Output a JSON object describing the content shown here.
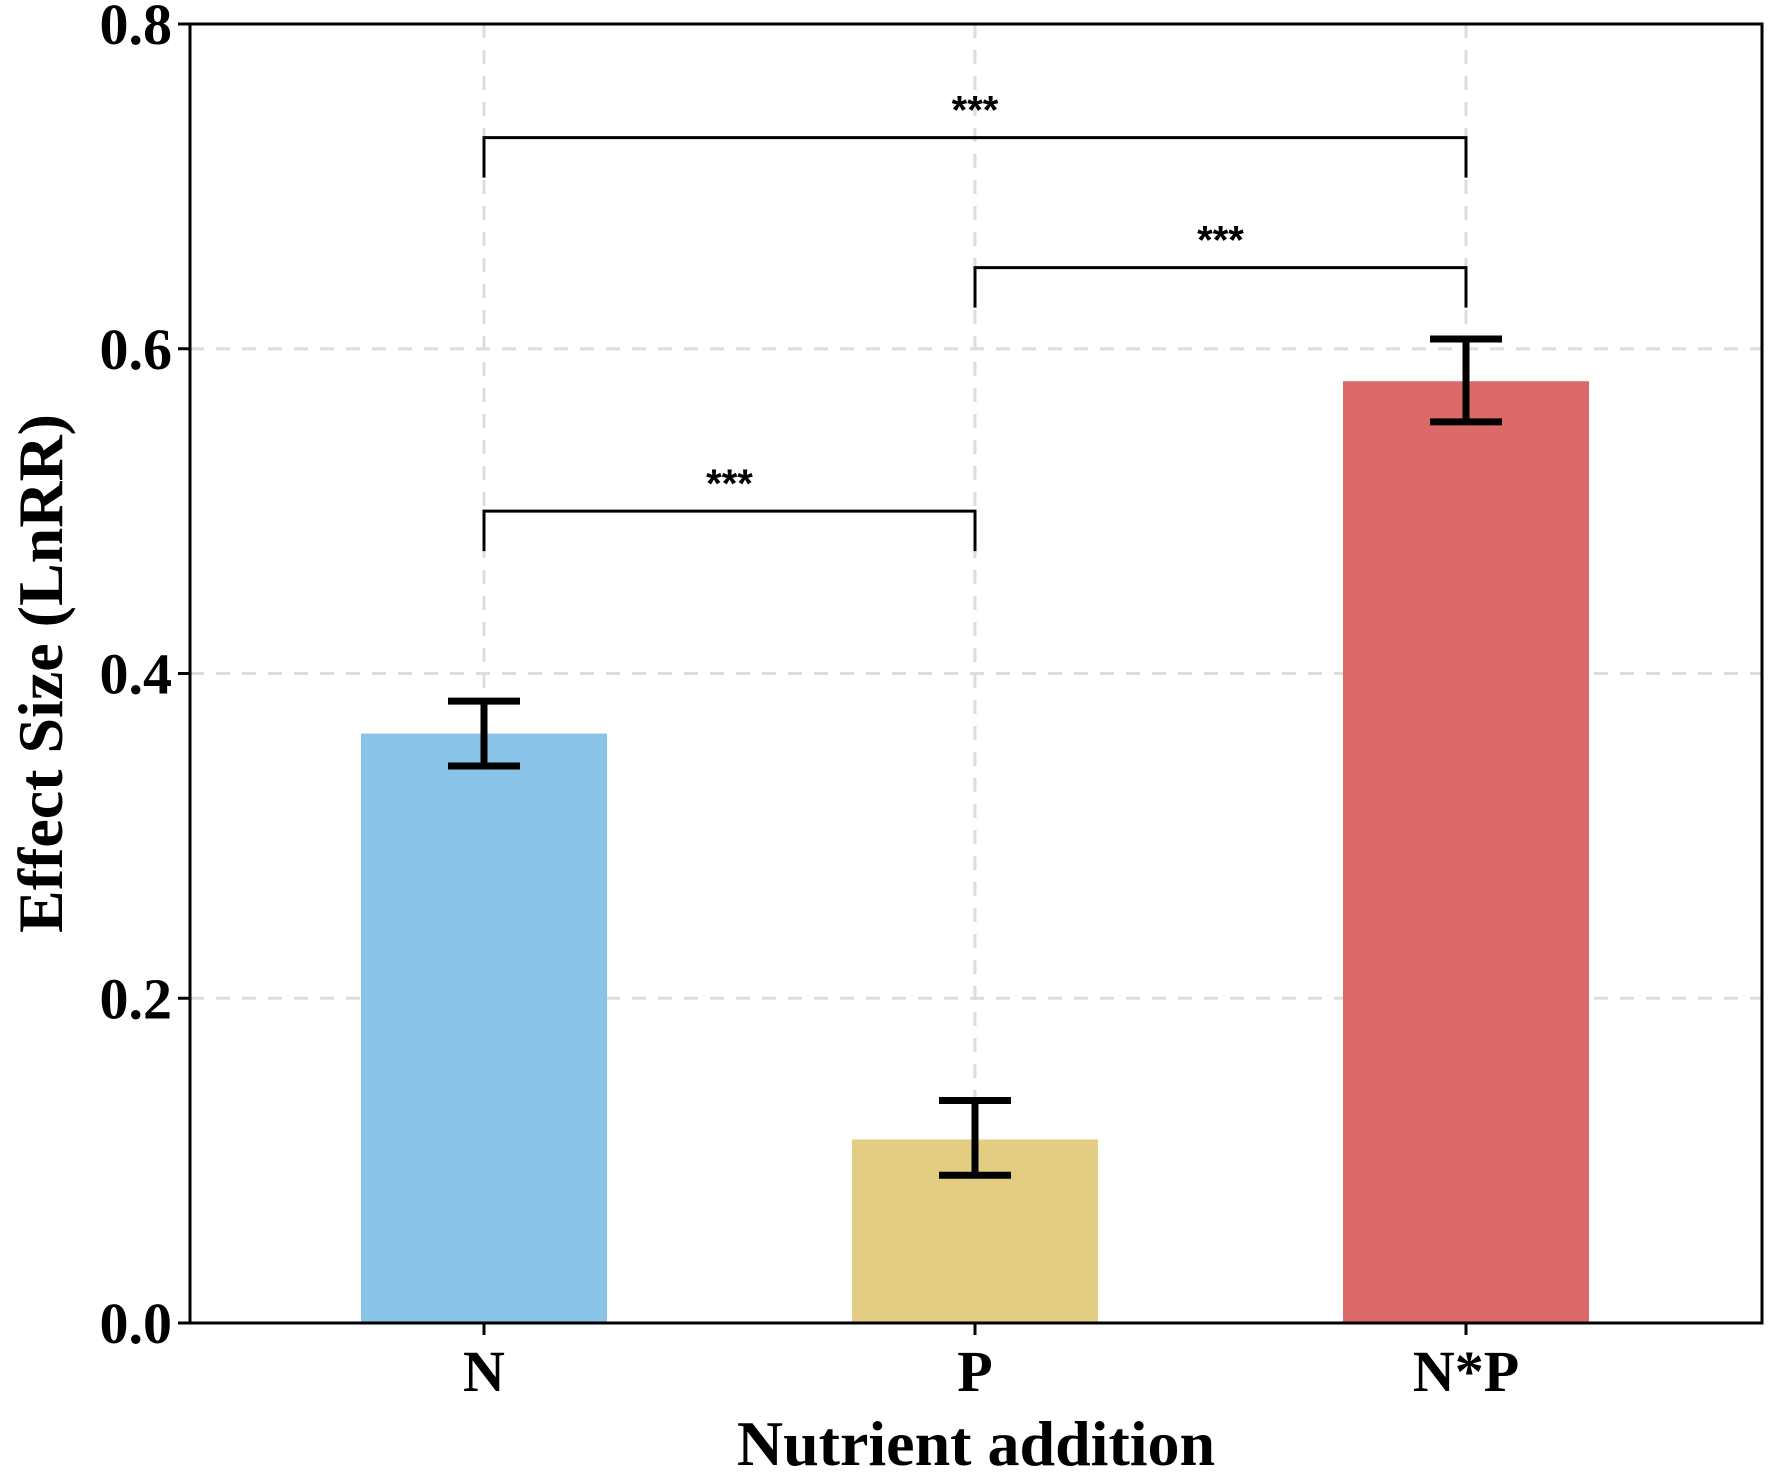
{
  "chart_data": {
    "type": "bar",
    "title": "",
    "xlabel": "Nutrient addition",
    "ylabel": "Effect Size (LnRR)",
    "ylim": [
      0,
      0.8
    ],
    "yticks": [
      "0.0",
      "0.2",
      "0.4",
      "0.6",
      "0.8"
    ],
    "grid": true,
    "categories": [
      "N",
      "P",
      "N*P"
    ],
    "values": [
      0.363,
      0.113,
      0.58
    ],
    "error_low": [
      0.343,
      0.091,
      0.555
    ],
    "error_high": [
      0.383,
      0.137,
      0.606
    ],
    "colors": [
      "#89C3E7",
      "#E3CD82",
      "#DC6A69"
    ],
    "significance": [
      {
        "from": "N",
        "to": "P",
        "label": "***",
        "y": 0.5
      },
      {
        "from": "P",
        "to": "N*P",
        "label": "***",
        "y": 0.65
      },
      {
        "from": "N",
        "to": "N*P",
        "label": "***",
        "y": 0.73
      }
    ]
  }
}
